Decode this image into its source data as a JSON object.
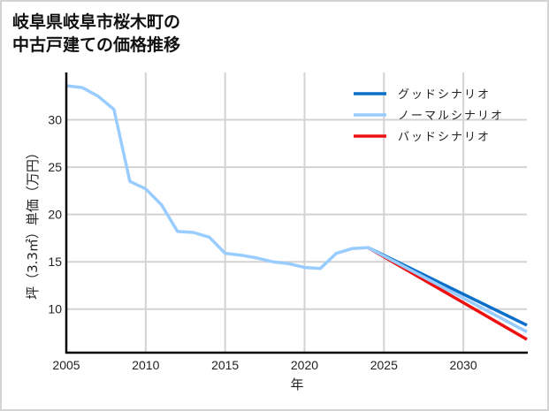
{
  "title": {
    "line1": "岐阜県岐阜市桜木町の",
    "line2": "中古戸建ての価格推移"
  },
  "colors": {
    "good": "#0a6fc9",
    "normal": "#99ccff",
    "bad": "#ee1111",
    "grid": "#d3d3d3",
    "axis": "#000000"
  },
  "chart_data": {
    "type": "line",
    "title": "岐阜県岐阜市桜木町の中古戸建ての価格推移",
    "xlabel": "年",
    "ylabel": "坪（3.3㎡）単価（万円）",
    "xlim": [
      2005,
      2034
    ],
    "ylim": [
      5.4,
      35.0
    ],
    "xticks": [
      2005,
      2010,
      2015,
      2020,
      2025,
      2030
    ],
    "yticks": [
      10,
      15,
      20,
      25,
      30
    ],
    "grid": true,
    "legend_position": "upper right",
    "legend": [
      "グッドシナリオ",
      "ノーマルシナリオ",
      "バッドシナリオ"
    ],
    "series": [
      {
        "name": "グッドシナリオ",
        "key": "good",
        "x": [
          2024,
          2034
        ],
        "values": [
          16.5,
          8.3
        ]
      },
      {
        "name": "ノーマルシナリオ",
        "key": "normal",
        "x": [
          2005,
          2006,
          2007,
          2008,
          2009,
          2010,
          2011,
          2012,
          2013,
          2014,
          2015,
          2016,
          2017,
          2018,
          2019,
          2020,
          2021,
          2022,
          2023,
          2024,
          2034
        ],
        "values": [
          33.6,
          33.4,
          32.5,
          31.1,
          23.5,
          22.7,
          21.0,
          18.2,
          18.1,
          17.6,
          15.9,
          15.7,
          15.4,
          15.0,
          14.8,
          14.4,
          14.3,
          15.9,
          16.4,
          16.5,
          7.6
        ]
      },
      {
        "name": "バッドシナリオ",
        "key": "bad",
        "x": [
          2024,
          2034
        ],
        "values": [
          16.5,
          6.8
        ]
      }
    ]
  }
}
